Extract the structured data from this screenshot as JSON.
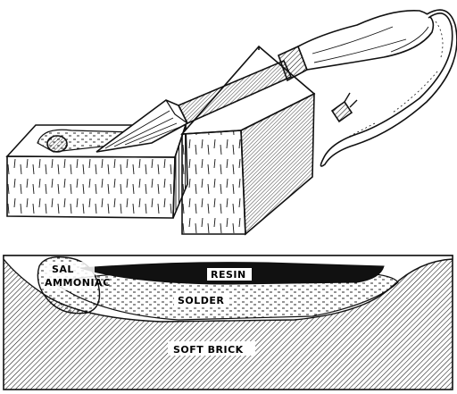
{
  "labels": {
    "sal": "SAL",
    "ammoniac": "AMMONIAC",
    "resin": "RESIN",
    "solder": "SOLDER",
    "soft_brick": "SOFT BRICK"
  },
  "colors": {
    "ink": "#111111",
    "paper": "#ffffff"
  }
}
